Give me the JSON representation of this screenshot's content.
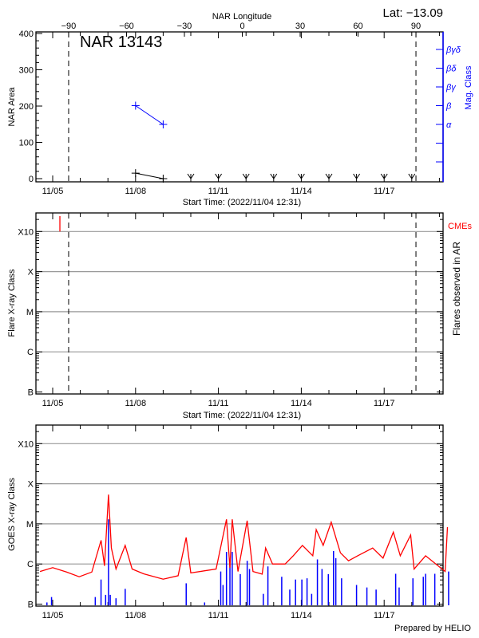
{
  "header": {
    "latitude": "Lat: −13.09",
    "longitude_axis_label": "NAR Longitude",
    "longitude_ticks": [
      -90,
      -60,
      -30,
      0,
      30,
      60,
      90
    ],
    "limb_longitudes": [
      -90,
      90
    ]
  },
  "colors": {
    "area": "#000000",
    "mag_class": "#0000ff",
    "cme": "#ff0000",
    "goes_flux": "#ff0000",
    "goes_events": "#0000ff",
    "grid": "#999999"
  },
  "time_axis": {
    "start_label": "Start Time: (2022/11/04 12:31)",
    "start": "2022-11-04T12:31",
    "end": "2022-11-19T03:00",
    "tick_labels": [
      "11/05",
      "11/08",
      "11/11",
      "11/14",
      "11/17"
    ],
    "tick_dates": [
      "2022-11-05",
      "2022-11-08",
      "2022-11-11",
      "2022-11-14",
      "2022-11-17"
    ]
  },
  "chart_data": [
    {
      "type": "line",
      "title": "NAR 13143",
      "ylabel": "NAR Area",
      "ylim": [
        0,
        400
      ],
      "yticks": [
        0,
        100,
        200,
        300,
        400
      ],
      "y2label": "Mag. Class",
      "y2_classes": [
        "α",
        "β",
        "βγ",
        "βδ",
        "βγδ"
      ],
      "area_series": [
        {
          "t": "2022-11-08T00:00",
          "area": 15
        },
        {
          "t": "2022-11-09T00:00",
          "area": 0
        }
      ],
      "no_data_markers": [
        "2022-11-10",
        "2022-11-11",
        "2022-11-12",
        "2022-11-13",
        "2022-11-14",
        "2022-11-15",
        "2022-11-16",
        "2022-11-17",
        "2022-11-18"
      ],
      "mag_class_series": [
        {
          "t": "2022-11-08T00:00",
          "class": "β"
        },
        {
          "t": "2022-11-09T00:00",
          "class": "α"
        }
      ]
    },
    {
      "type": "scatter",
      "ylabel": "Flare X-ray Class",
      "y2label": "Flares observed in AR",
      "yscale": "log",
      "yticks": [
        "B",
        "C",
        "M",
        "X",
        "X10"
      ],
      "grid": true,
      "cme_label": "CMEs",
      "cmes": [
        "2022-11-05T06:15"
      ],
      "flares": []
    },
    {
      "type": "line",
      "ylabel": "GOES X-ray Class",
      "yscale": "log",
      "yticks": [
        "B",
        "C",
        "M",
        "X",
        "X10"
      ],
      "grid": true,
      "flux": [
        [
          "2022-11-04T13:00",
          "B6.5"
        ],
        [
          "2022-11-05T00:00",
          "B8.1"
        ],
        [
          "2022-11-05T12:00",
          "B6.3"
        ],
        [
          "2022-11-05T23:00",
          "B4.8"
        ],
        [
          "2022-11-06T10:00",
          "B6.3"
        ],
        [
          "2022-11-06T18:00",
          "C3.9"
        ],
        [
          "2022-11-06T21:00",
          "B9.0"
        ],
        [
          "2022-11-07T00:30",
          "M5.4"
        ],
        [
          "2022-11-07T03:00",
          "C2.5"
        ],
        [
          "2022-11-07T07:00",
          "B7.5"
        ],
        [
          "2022-11-07T15:00",
          "C2.9"
        ],
        [
          "2022-11-07T21:00",
          "B7.5"
        ],
        [
          "2022-11-08T07:00",
          "B5.7"
        ],
        [
          "2022-11-09T00:00",
          "B4.2"
        ],
        [
          "2022-11-09T13:00",
          "B5.1"
        ],
        [
          "2022-11-09T20:00",
          "C4.6"
        ],
        [
          "2022-11-10T00:00",
          "B6.0"
        ],
        [
          "2022-11-10T22:00",
          "B7.5"
        ],
        [
          "2022-11-11T07:00",
          "M1.3"
        ],
        [
          "2022-11-11T10:00",
          "B8.0"
        ],
        [
          "2022-11-11T12:00",
          "M1.3"
        ],
        [
          "2022-11-11T17:00",
          "B6.5"
        ],
        [
          "2022-11-12T01:00",
          "M1.2"
        ],
        [
          "2022-11-12T06:00",
          "B6.5"
        ],
        [
          "2022-11-12T14:00",
          "B5.6"
        ],
        [
          "2022-11-12T17:00",
          "C2.5"
        ],
        [
          "2022-11-12T23:00",
          "C1.0"
        ],
        [
          "2022-11-13T10:00",
          "C1.0"
        ],
        [
          "2022-11-13T17:00",
          "C1.6"
        ],
        [
          "2022-11-14T01:00",
          "C2.9"
        ],
        [
          "2022-11-14T10:00",
          "C1.6"
        ],
        [
          "2022-11-14T13:00",
          "C7.2"
        ],
        [
          "2022-11-14T19:00",
          "C2.9"
        ],
        [
          "2022-11-15T02:00",
          "M1.1"
        ],
        [
          "2022-11-15T10:00",
          "C1.9"
        ],
        [
          "2022-11-15T17:00",
          "C1.2"
        ],
        [
          "2022-11-16T01:00",
          "C1.6"
        ],
        [
          "2022-11-16T14:00",
          "C2.5"
        ],
        [
          "2022-11-16T23:00",
          "C1.4"
        ],
        [
          "2022-11-17T08:00",
          "C6.2"
        ],
        [
          "2022-11-17T14:00",
          "C1.6"
        ],
        [
          "2022-11-17T23:00",
          "C5.3"
        ],
        [
          "2022-11-18T02:00",
          "B7.5"
        ],
        [
          "2022-11-18T12:00",
          "C1.6"
        ],
        [
          "2022-11-19T05:00",
          "B6.5"
        ],
        [
          "2022-11-19T07:00",
          "C8.3"
        ]
      ],
      "events": [
        [
          "2022-11-04T19:00",
          "B1.1"
        ],
        [
          "2022-11-04T23:00",
          "B1.5"
        ],
        [
          "2022-11-06T13:00",
          "B1.5"
        ],
        [
          "2022-11-06T18:00",
          "B4.1"
        ],
        [
          "2022-11-06T22:00",
          "B1.7"
        ],
        [
          "2022-11-07T00:30",
          "M1.3"
        ],
        [
          "2022-11-07T02:00",
          "B1.7"
        ],
        [
          "2022-11-07T07:00",
          "B1.4"
        ],
        [
          "2022-11-07T15:00",
          "B2.4"
        ],
        [
          "2022-11-09T20:00",
          "B3.3"
        ],
        [
          "2022-11-10T12:00",
          "B1.1"
        ],
        [
          "2022-11-11T02:00",
          "B6.5"
        ],
        [
          "2022-11-11T04:00",
          "B3.0"
        ],
        [
          "2022-11-11T07:00",
          "C2.0"
        ],
        [
          "2022-11-11T10:00",
          "C1.0"
        ],
        [
          "2022-11-11T12:00",
          "C2.0"
        ],
        [
          "2022-11-11T19:00",
          "B5.6"
        ],
        [
          "2022-11-12T01:00",
          "C1.2"
        ],
        [
          "2022-11-12T03:00",
          "B7.5"
        ],
        [
          "2022-11-12T15:00",
          "B1.8"
        ],
        [
          "2022-11-12T19:00",
          "B8.7"
        ],
        [
          "2022-11-13T07:00",
          "B4.8"
        ],
        [
          "2022-11-13T14:00",
          "B2.3"
        ],
        [
          "2022-11-13T19:00",
          "B4.1"
        ],
        [
          "2022-11-14T00:30",
          "B4.1"
        ],
        [
          "2022-11-14T05:00",
          "B4.4"
        ],
        [
          "2022-11-14T09:00",
          "B1.8"
        ],
        [
          "2022-11-14T14:00",
          "C1.3"
        ],
        [
          "2022-11-14T18:00",
          "B7.5"
        ],
        [
          "2022-11-14T23:30",
          "B5.6"
        ],
        [
          "2022-11-15T04:00",
          "C2.1"
        ],
        [
          "2022-11-15T06:00",
          "C1.4"
        ],
        [
          "2022-11-15T11:00",
          "B4.4"
        ],
        [
          "2022-11-16T00:00",
          "B3.0"
        ],
        [
          "2022-11-16T09:00",
          "B2.6"
        ],
        [
          "2022-11-16T17:00",
          "B2.3"
        ],
        [
          "2022-11-17T10:00",
          "B5.7"
        ],
        [
          "2022-11-17T13:00",
          "B2.6"
        ],
        [
          "2022-11-18T01:00",
          "B4.4"
        ],
        [
          "2022-11-18T10:00",
          "B4.8"
        ],
        [
          "2022-11-18T12:00",
          "B5.7"
        ],
        [
          "2022-11-18T20:00",
          "B5.7"
        ],
        [
          "2022-11-19T08:00",
          "B6.5"
        ]
      ]
    }
  ],
  "footer": {
    "credit": "Prepared by HELIO"
  }
}
